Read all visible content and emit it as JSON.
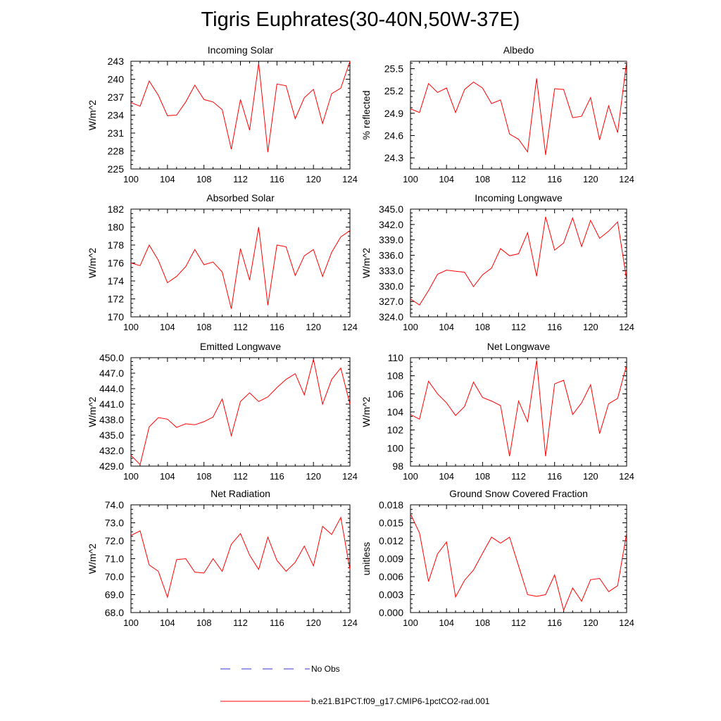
{
  "title": "Tigris Euphrates(30-40N,50W-37E)",
  "legend": {
    "obs_label": "No Obs",
    "model_label": "b.e21.B1PCT.f09_g17.CMIP6-1pctCO2-rad.001",
    "obs_color": "#3333cc",
    "model_color": "#ff0000"
  },
  "chart_data": [
    {
      "type": "line",
      "title": "Incoming Solar",
      "ylabel": "W/m^2",
      "xlim": [
        100,
        124
      ],
      "ylim": [
        225,
        243
      ],
      "xticks": [
        "100",
        "104",
        "108",
        "112",
        "116",
        "120",
        "124"
      ],
      "yticks": [
        "225",
        "228",
        "231",
        "234",
        "237",
        "240",
        "243"
      ],
      "x": [
        100,
        101,
        102,
        103,
        104,
        105,
        106,
        107,
        108,
        109,
        110,
        111,
        112,
        113,
        114,
        115,
        116,
        117,
        118,
        119,
        120,
        121,
        122,
        123,
        124
      ],
      "series": [
        {
          "name": "b.e21.B1PCT.f09_g17.CMIP6-1pctCO2-rad.001",
          "values": [
            236.1,
            235.5,
            239.7,
            237.3,
            233.9,
            234.0,
            236.2,
            239.0,
            236.6,
            236.2,
            234.9,
            228.3,
            236.6,
            231.5,
            242.7,
            227.8,
            239.2,
            238.9,
            233.4,
            236.9,
            238.3,
            232.6,
            237.6,
            238.5,
            243.0
          ]
        }
      ]
    },
    {
      "type": "line",
      "title": "Albedo",
      "ylabel": "% reflected",
      "xlim": [
        100,
        124
      ],
      "ylim": [
        24.15,
        25.6
      ],
      "xticks": [
        "100",
        "104",
        "108",
        "112",
        "116",
        "120",
        "124"
      ],
      "yticks": [
        "24.3",
        "24.6",
        "24.9",
        "25.2",
        "25.5"
      ],
      "x": [
        100,
        101,
        102,
        103,
        104,
        105,
        106,
        107,
        108,
        109,
        110,
        111,
        112,
        113,
        114,
        115,
        116,
        117,
        118,
        119,
        120,
        121,
        122,
        123,
        124
      ],
      "series": [
        {
          "name": "b.e21.B1PCT.f09_g17.CMIP6-1pctCO2-rad.001",
          "values": [
            24.96,
            24.91,
            25.3,
            25.18,
            25.24,
            24.91,
            25.22,
            25.32,
            25.24,
            25.03,
            25.08,
            24.62,
            24.55,
            24.38,
            25.37,
            24.34,
            25.23,
            25.22,
            24.84,
            24.86,
            25.11,
            24.54,
            25.0,
            24.64,
            25.6
          ]
        }
      ]
    },
    {
      "type": "line",
      "title": "Absorbed Solar",
      "ylabel": "W/m^2",
      "xlim": [
        100,
        124
      ],
      "ylim": [
        170,
        182
      ],
      "xticks": [
        "100",
        "104",
        "108",
        "112",
        "116",
        "120",
        "124"
      ],
      "yticks": [
        "170",
        "172",
        "174",
        "176",
        "178",
        "180",
        "182"
      ],
      "x": [
        100,
        101,
        102,
        103,
        104,
        105,
        106,
        107,
        108,
        109,
        110,
        111,
        112,
        113,
        114,
        115,
        116,
        117,
        118,
        119,
        120,
        121,
        122,
        123,
        124
      ],
      "series": [
        {
          "name": "b.e21.B1PCT.f09_g17.CMIP6-1pctCO2-rad.001",
          "values": [
            176.0,
            175.7,
            178.0,
            176.3,
            173.8,
            174.5,
            175.6,
            177.5,
            175.8,
            176.1,
            175.0,
            170.9,
            177.6,
            174.1,
            180.0,
            171.3,
            178.0,
            177.8,
            174.6,
            176.8,
            177.5,
            174.5,
            177.2,
            178.9,
            179.6
          ]
        }
      ]
    },
    {
      "type": "line",
      "title": "Incoming Longwave",
      "ylabel": "W/m^2",
      "xlim": [
        100,
        124
      ],
      "ylim": [
        324,
        345
      ],
      "xticks": [
        "100",
        "104",
        "108",
        "112",
        "116",
        "120",
        "124"
      ],
      "yticks": [
        "324.0",
        "327.0",
        "330.0",
        "333.0",
        "336.0",
        "339.0",
        "342.0",
        "345.0"
      ],
      "x": [
        100,
        101,
        102,
        103,
        104,
        105,
        106,
        107,
        108,
        109,
        110,
        111,
        112,
        113,
        114,
        115,
        116,
        117,
        118,
        119,
        120,
        121,
        122,
        123,
        124
      ],
      "series": [
        {
          "name": "b.e21.B1PCT.f09_g17.CMIP6-1pctCO2-rad.001",
          "values": [
            327.5,
            326.3,
            329.1,
            332.3,
            333.1,
            332.9,
            332.7,
            329.9,
            332.2,
            333.5,
            337.3,
            335.9,
            336.3,
            340.4,
            331.9,
            343.5,
            337.0,
            338.4,
            343.3,
            337.7,
            342.8,
            339.3,
            340.7,
            342.5,
            331.2
          ]
        }
      ]
    },
    {
      "type": "line",
      "title": "Emitted Longwave",
      "ylabel": "W/m^2",
      "xlim": [
        100,
        124
      ],
      "ylim": [
        429,
        450
      ],
      "xticks": [
        "100",
        "104",
        "108",
        "112",
        "116",
        "120",
        "124"
      ],
      "yticks": [
        "429.0",
        "432.0",
        "435.0",
        "438.0",
        "441.0",
        "444.0",
        "447.0",
        "450.0"
      ],
      "x": [
        100,
        101,
        102,
        103,
        104,
        105,
        106,
        107,
        108,
        109,
        110,
        111,
        112,
        113,
        114,
        115,
        116,
        117,
        118,
        119,
        120,
        121,
        122,
        123,
        124
      ],
      "series": [
        {
          "name": "b.e21.B1PCT.f09_g17.CMIP6-1pctCO2-rad.001",
          "values": [
            431.1,
            429.3,
            436.6,
            438.4,
            438.1,
            436.5,
            437.2,
            437.0,
            437.6,
            438.5,
            442.0,
            434.9,
            441.5,
            443.2,
            441.5,
            442.4,
            444.2,
            445.8,
            446.9,
            442.8,
            449.7,
            441.0,
            445.8,
            448.0,
            441.0
          ]
        }
      ]
    },
    {
      "type": "line",
      "title": "Net Longwave",
      "ylabel": "W/m^2",
      "xlim": [
        100,
        124
      ],
      "ylim": [
        98,
        110
      ],
      "xticks": [
        "100",
        "104",
        "108",
        "112",
        "116",
        "120",
        "124"
      ],
      "yticks": [
        "98",
        "100",
        "102",
        "104",
        "106",
        "108",
        "110"
      ],
      "x": [
        100,
        101,
        102,
        103,
        104,
        105,
        106,
        107,
        108,
        109,
        110,
        111,
        112,
        113,
        114,
        115,
        116,
        117,
        118,
        119,
        120,
        121,
        122,
        123,
        124
      ],
      "series": [
        {
          "name": "b.e21.B1PCT.f09_g17.CMIP6-1pctCO2-rad.001",
          "values": [
            103.7,
            103.2,
            107.4,
            106.0,
            105.0,
            103.6,
            104.6,
            107.3,
            105.6,
            105.2,
            104.7,
            99.1,
            105.2,
            102.9,
            109.7,
            99.1,
            107.1,
            107.5,
            103.7,
            105.0,
            107.0,
            101.6,
            104.9,
            105.5,
            109.2
          ]
        }
      ]
    },
    {
      "type": "line",
      "title": "Net Radiation",
      "ylabel": "W/m^2",
      "xlim": [
        100,
        124
      ],
      "ylim": [
        68,
        74
      ],
      "xticks": [
        "100",
        "104",
        "108",
        "112",
        "116",
        "120",
        "124"
      ],
      "yticks": [
        "68.0",
        "69.0",
        "70.0",
        "71.0",
        "72.0",
        "73.0",
        "74.0"
      ],
      "x": [
        100,
        101,
        102,
        103,
        104,
        105,
        106,
        107,
        108,
        109,
        110,
        111,
        112,
        113,
        114,
        115,
        116,
        117,
        118,
        119,
        120,
        121,
        122,
        123,
        124
      ],
      "series": [
        {
          "name": "b.e21.B1PCT.f09_g17.CMIP6-1pctCO2-rad.001",
          "values": [
            72.3,
            72.55,
            70.65,
            70.3,
            68.85,
            70.95,
            71.0,
            70.25,
            70.2,
            71.0,
            70.3,
            71.8,
            72.4,
            71.2,
            70.4,
            72.2,
            70.9,
            70.3,
            70.8,
            71.7,
            70.6,
            72.8,
            72.35,
            73.3,
            70.4
          ]
        }
      ]
    },
    {
      "type": "line",
      "title": "Ground Snow Covered Fraction",
      "ylabel": "unitless",
      "xlim": [
        100,
        124
      ],
      "ylim": [
        0,
        0.018
      ],
      "xticks": [
        "100",
        "104",
        "108",
        "112",
        "116",
        "120",
        "124"
      ],
      "yticks": [
        "0.000",
        "0.003",
        "0.006",
        "0.009",
        "0.012",
        "0.015",
        "0.018"
      ],
      "x": [
        100,
        101,
        102,
        103,
        104,
        105,
        106,
        107,
        108,
        109,
        110,
        111,
        112,
        113,
        114,
        115,
        116,
        117,
        118,
        119,
        120,
        121,
        122,
        123,
        124
      ],
      "series": [
        {
          "name": "b.e21.B1PCT.f09_g17.CMIP6-1pctCO2-rad.001",
          "values": [
            0.0165,
            0.0133,
            0.0052,
            0.0098,
            0.0118,
            0.0026,
            0.0054,
            0.0071,
            0.0099,
            0.0126,
            0.0116,
            0.0126,
            0.0078,
            0.003,
            0.0027,
            0.003,
            0.0063,
            0.0004,
            0.0041,
            0.0019,
            0.0055,
            0.0057,
            0.0035,
            0.0045,
            0.0133
          ]
        }
      ]
    }
  ]
}
